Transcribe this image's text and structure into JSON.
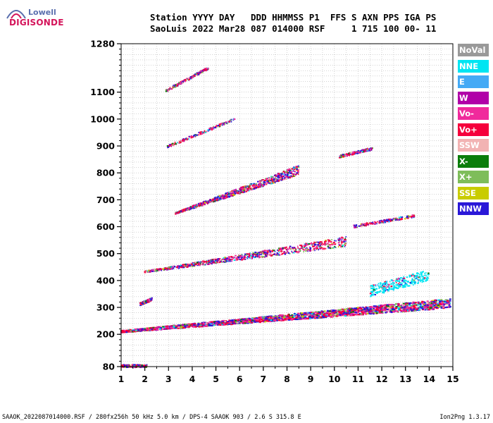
{
  "logo": {
    "top": "Lowell",
    "bottom": "DIGISONDE"
  },
  "header": {
    "line1": "Station YYYY DAY   DDD HHMMSS P1  FFS S AXN PPS IGA PS",
    "line2": "SaoLuis 2022 Mar28 087 014000 RSF     1 715 100 00- 11"
  },
  "footer": {
    "left": "SAAOK_2022087014000.RSF / 280fx256h 50 kHz 5.0 km / DPS-4 SAAOK 903 / 2.6 S 315.8 E",
    "right": "Ion2Png 1.3.17"
  },
  "legend": [
    {
      "label": "NoVal",
      "color": "#999999"
    },
    {
      "label": "NNE",
      "color": "#00e5f2"
    },
    {
      "label": "E",
      "color": "#44aaf5"
    },
    {
      "label": "W",
      "color": "#b100a8"
    },
    {
      "label": "Vo-",
      "color": "#f02a9c"
    },
    {
      "label": "Vo+",
      "color": "#f5003c"
    },
    {
      "label": "SSW",
      "color": "#f2b3b3"
    },
    {
      "label": "X-",
      "color": "#0b7d0b"
    },
    {
      "label": "X+",
      "color": "#7ebd5a"
    },
    {
      "label": "SSE",
      "color": "#c9cc00"
    },
    {
      "label": "NNW",
      "color": "#2a18d8"
    }
  ],
  "chart_data": {
    "type": "scatter",
    "xlim": [
      1,
      15
    ],
    "ylim": [
      80,
      1280
    ],
    "x_ticks": [
      1,
      2,
      3,
      4,
      5,
      6,
      7,
      8,
      9,
      10,
      11,
      12,
      13,
      14,
      15
    ],
    "y_ticks": [
      80,
      200,
      300,
      400,
      500,
      600,
      700,
      800,
      900,
      1000,
      1100,
      1280
    ],
    "grid": true,
    "legend_position": "right",
    "traces": [
      {
        "f_start": 1.0,
        "f_end": 2.1,
        "h_start": 82,
        "h_end": 82,
        "density": "sparse"
      },
      {
        "f_start": 1.0,
        "f_end": 14.9,
        "h_start": 210,
        "h_end": 315,
        "density": "dense"
      },
      {
        "f_start": 1.8,
        "f_end": 2.3,
        "h_start": 312,
        "h_end": 330,
        "density": "sparse"
      },
      {
        "f_start": 2.0,
        "f_end": 10.5,
        "h_start": 432,
        "h_end": 545,
        "density": "medium"
      },
      {
        "f_start": 10.8,
        "f_end": 13.4,
        "h_start": 600,
        "h_end": 640,
        "density": "sparse"
      },
      {
        "f_start": 3.3,
        "f_end": 8.5,
        "h_start": 650,
        "h_end": 810,
        "density": "medium"
      },
      {
        "f_start": 10.2,
        "f_end": 11.6,
        "h_start": 860,
        "h_end": 890,
        "density": "sparse"
      },
      {
        "f_start": 2.9,
        "f_end": 5.8,
        "h_start": 895,
        "h_end": 1000,
        "density": "sparse"
      },
      {
        "f_start": 2.9,
        "f_end": 4.7,
        "h_start": 1105,
        "h_end": 1190,
        "density": "sparse"
      },
      {
        "f_start": 11.5,
        "f_end": 14.0,
        "h_start": 360,
        "h_end": 420,
        "density": "patch",
        "color_key": "NNE"
      }
    ]
  }
}
